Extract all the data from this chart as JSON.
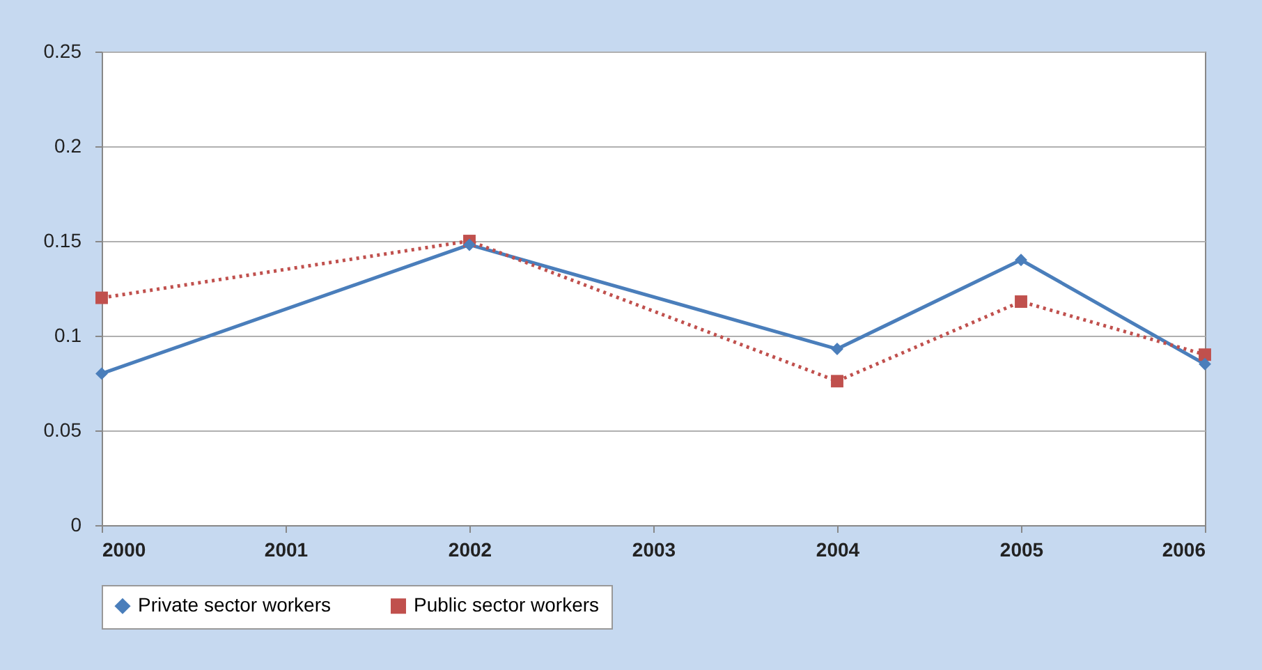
{
  "chart_data": {
    "type": "line",
    "x": [
      2000,
      2002,
      2004,
      2005,
      2006
    ],
    "xlim": [
      2000,
      2006
    ],
    "xticks": [
      2000,
      2001,
      2002,
      2003,
      2004,
      2005,
      2006
    ],
    "ylim": [
      0,
      0.25
    ],
    "yticks": [
      0,
      0.05,
      0.1,
      0.15,
      0.2,
      0.25
    ],
    "grid": "y",
    "legend": "bottom",
    "series": [
      {
        "name": "Private sector workers",
        "color": "#4a7ebb",
        "marker": "diamond",
        "line_style": "solid",
        "values": [
          0.08,
          0.148,
          0.093,
          0.14,
          0.085
        ]
      },
      {
        "name": "Public sector workers",
        "color": "#c0504d",
        "marker": "square",
        "line_style": "dotted",
        "values": [
          0.12,
          0.15,
          0.076,
          0.118,
          0.09
        ]
      }
    ]
  }
}
